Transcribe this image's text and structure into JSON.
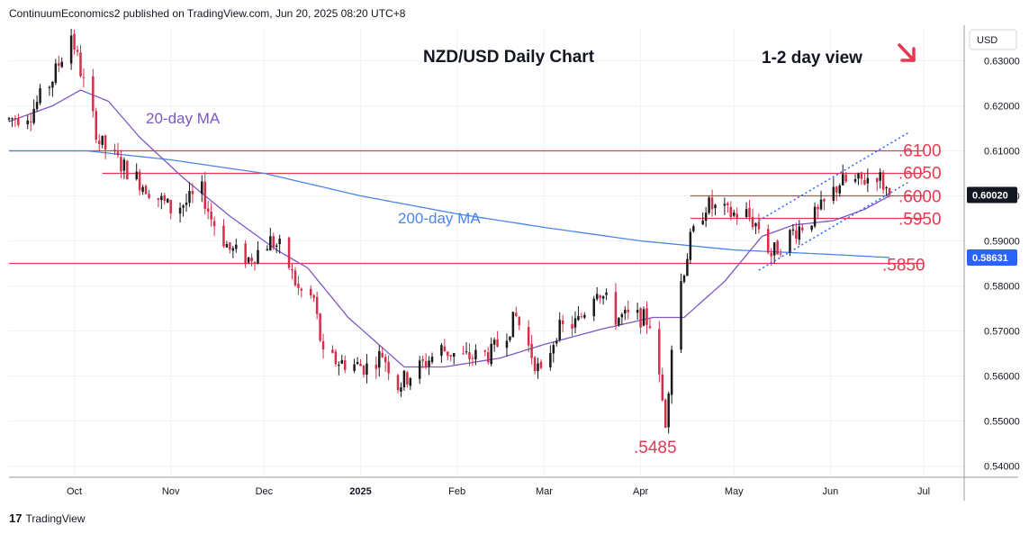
{
  "publisher_line": "ContinuumEconomics2 published on TradingView.com, Jun 20, 2025 08:20 UTC+8",
  "footer_brand": "TradingView",
  "footer_logo": "17",
  "colors": {
    "up": "#1a1a1a",
    "down": "#d32f4a",
    "ma20": "#7e57c2",
    "ma200": "#4a86e8",
    "level_line": "#e53950",
    "channel": "#2962ff",
    "arrow": "#e53950",
    "price_badge": "#131722",
    "ma200_badge": "#2962ff"
  },
  "chart_data": {
    "type": "candlestick",
    "title": "NZD/USD Daily Chart",
    "subtitle": "1-2 day view",
    "currency": "USD",
    "y_range": [
      0.5375,
      0.6375
    ],
    "y_ticks": [
      "0.63000",
      "0.62000",
      "0.61000",
      "0.60000",
      "0.59000",
      "0.58000",
      "0.57000",
      "0.56000",
      "0.55000",
      "0.54000"
    ],
    "x_labels": [
      "Oct",
      "Nov",
      "Dec",
      "2025",
      "Feb",
      "Mar",
      "Apr",
      "May",
      "Jun",
      "Jul"
    ],
    "x_label_dates": [
      "2024-10-01",
      "2024-11-01",
      "2024-12-01",
      "2025-01-01",
      "2025-02-01",
      "2025-03-01",
      "2025-04-01",
      "2025-05-01",
      "2025-06-01",
      "2025-07-01"
    ],
    "start_date": "2024-09-10",
    "end_date": "2025-07-14",
    "last_price": "0.60020",
    "ma200_value": "0.58631",
    "levels": [
      {
        "value": 0.61,
        "label": ".6100",
        "from": "2024-09-10"
      },
      {
        "value": 0.605,
        "label": ".6050",
        "from": "2024-10-10"
      },
      {
        "value": 0.6,
        "label": ".6000",
        "from": "2025-04-17"
      },
      {
        "value": 0.595,
        "label": ".5950",
        "from": "2025-04-17"
      },
      {
        "value": 0.585,
        "label": ".5850",
        "from": "2024-09-10"
      }
    ],
    "low_annotation": {
      "label": ".5485",
      "date": "2025-04-09",
      "value": 0.5485
    },
    "ma_labels": {
      "ma20": "20-day MA",
      "ma200": "200-day MA"
    },
    "channel": {
      "upper": [
        [
          "2025-05-09",
          0.5945
        ],
        [
          "2025-06-26",
          0.614
        ]
      ],
      "lower": [
        [
          "2025-05-09",
          0.5835
        ],
        [
          "2025-06-26",
          0.603
        ]
      ]
    },
    "anchors": [
      [
        "2024-09-10",
        0.617
      ],
      [
        "2024-09-17",
        0.6185
      ],
      [
        "2024-09-24",
        0.626
      ],
      [
        "2024-09-30",
        0.636
      ],
      [
        "2024-10-04",
        0.625
      ],
      [
        "2024-10-09",
        0.612
      ],
      [
        "2024-10-16",
        0.607
      ],
      [
        "2024-10-24",
        0.602
      ],
      [
        "2024-11-01",
        0.597
      ],
      [
        "2024-11-06",
        0.5985
      ],
      [
        "2024-11-11",
        0.601
      ],
      [
        "2024-11-14",
        0.595
      ],
      [
        "2024-11-20",
        0.588
      ],
      [
        "2024-11-26",
        0.586
      ],
      [
        "2024-12-03",
        0.59
      ],
      [
        "2024-12-07",
        0.588
      ],
      [
        "2024-12-12",
        0.579
      ],
      [
        "2024-12-17",
        0.577
      ],
      [
        "2024-12-20",
        0.564
      ],
      [
        "2024-12-26",
        0.563
      ],
      [
        "2025-01-03",
        0.562
      ],
      [
        "2025-01-08",
        0.565
      ],
      [
        "2025-01-13",
        0.558
      ],
      [
        "2025-01-20",
        0.562
      ],
      [
        "2025-01-27",
        0.566
      ],
      [
        "2025-02-03",
        0.564
      ],
      [
        "2025-02-12",
        0.565
      ],
      [
        "2025-02-20",
        0.573
      ],
      [
        "2025-02-28",
        0.56
      ],
      [
        "2025-03-05",
        0.57
      ],
      [
        "2025-03-12",
        0.572
      ],
      [
        "2025-03-18",
        0.58
      ],
      [
        "2025-03-24",
        0.573
      ],
      [
        "2025-04-01",
        0.573
      ],
      [
        "2025-04-04",
        0.572
      ],
      [
        "2025-04-09",
        0.55
      ],
      [
        "2025-04-12",
        0.575
      ],
      [
        "2025-04-17",
        0.59
      ],
      [
        "2025-04-22",
        0.598
      ],
      [
        "2025-04-29",
        0.596
      ],
      [
        "2025-05-05",
        0.596
      ],
      [
        "2025-05-09",
        0.593
      ],
      [
        "2025-05-13",
        0.587
      ],
      [
        "2025-05-20",
        0.592
      ],
      [
        "2025-05-28",
        0.596
      ],
      [
        "2025-06-04",
        0.603
      ],
      [
        "2025-06-10",
        0.603
      ],
      [
        "2025-06-16",
        0.605
      ],
      [
        "2025-06-20",
        0.6002
      ]
    ],
    "ma20_anchors": [
      [
        "2024-09-10",
        0.6165
      ],
      [
        "2024-09-24",
        0.62
      ],
      [
        "2024-10-03",
        0.6235
      ],
      [
        "2024-10-12",
        0.621
      ],
      [
        "2024-10-22",
        0.613
      ],
      [
        "2024-11-05",
        0.604
      ],
      [
        "2024-11-20",
        0.5955
      ],
      [
        "2024-12-05",
        0.588
      ],
      [
        "2024-12-15",
        0.584
      ],
      [
        "2024-12-28",
        0.573
      ],
      [
        "2025-01-15",
        0.562
      ],
      [
        "2025-01-28",
        0.562
      ],
      [
        "2025-02-15",
        0.564
      ],
      [
        "2025-03-01",
        0.567
      ],
      [
        "2025-03-20",
        0.5705
      ],
      [
        "2025-04-05",
        0.573
      ],
      [
        "2025-04-15",
        0.573
      ],
      [
        "2025-04-28",
        0.581
      ],
      [
        "2025-05-10",
        0.591
      ],
      [
        "2025-05-20",
        0.5935
      ],
      [
        "2025-06-02",
        0.5945
      ],
      [
        "2025-06-12",
        0.597
      ],
      [
        "2025-06-20",
        0.6
      ]
    ],
    "ma200_anchors": [
      [
        "2024-09-10",
        0.61
      ],
      [
        "2024-10-05",
        0.61
      ],
      [
        "2024-11-01",
        0.608
      ],
      [
        "2024-12-01",
        0.605
      ],
      [
        "2025-01-01",
        0.6
      ],
      [
        "2025-02-01",
        0.596
      ],
      [
        "2025-03-01",
        0.593
      ],
      [
        "2025-04-01",
        0.59
      ],
      [
        "2025-05-01",
        0.588
      ],
      [
        "2025-06-01",
        0.587
      ],
      [
        "2025-06-20",
        0.5863
      ]
    ]
  }
}
